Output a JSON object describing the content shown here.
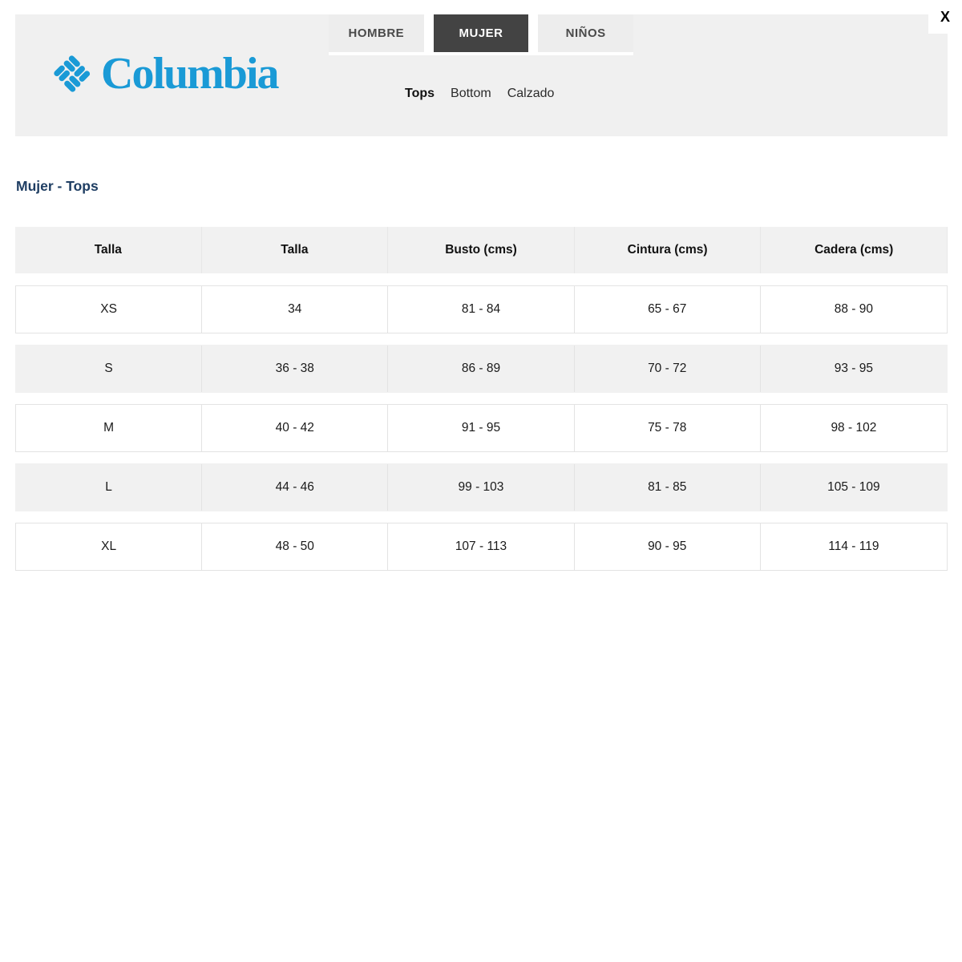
{
  "colors": {
    "brand_blue": "#1a9ad6",
    "title_navy": "#1f3e63",
    "active_tab_bg": "#434343",
    "band_gray": "#f0f0f0",
    "row_gray": "#f1f1f1"
  },
  "header": {
    "brand": "Columbia",
    "close_label": "X",
    "tabs": [
      {
        "label": "HOMBRE",
        "active": false
      },
      {
        "label": "MUJER",
        "active": true
      },
      {
        "label": "NIÑOS",
        "active": false
      }
    ],
    "subnav": [
      {
        "label": "Tops",
        "active": true
      },
      {
        "label": "Bottom",
        "active": false
      },
      {
        "label": "Calzado",
        "active": false
      }
    ]
  },
  "page_title": "Mujer - Tops",
  "size_table": {
    "columns": [
      "Talla",
      "Talla",
      "Busto (cms)",
      "Cintura (cms)",
      "Cadera (cms)"
    ],
    "rows": [
      [
        "XS",
        "34",
        "81 - 84",
        "65 - 67",
        "88 - 90"
      ],
      [
        "S",
        "36 - 38",
        "86 - 89",
        "70 - 72",
        "93 - 95"
      ],
      [
        "M",
        "40 - 42",
        "91 - 95",
        "75 - 78",
        "98 - 102"
      ],
      [
        "L",
        "44 - 46",
        "99 - 103",
        "81 - 85",
        "105 - 109"
      ],
      [
        "XL",
        "48 - 50",
        "107 - 113",
        "90 - 95",
        "114 - 119"
      ]
    ]
  }
}
